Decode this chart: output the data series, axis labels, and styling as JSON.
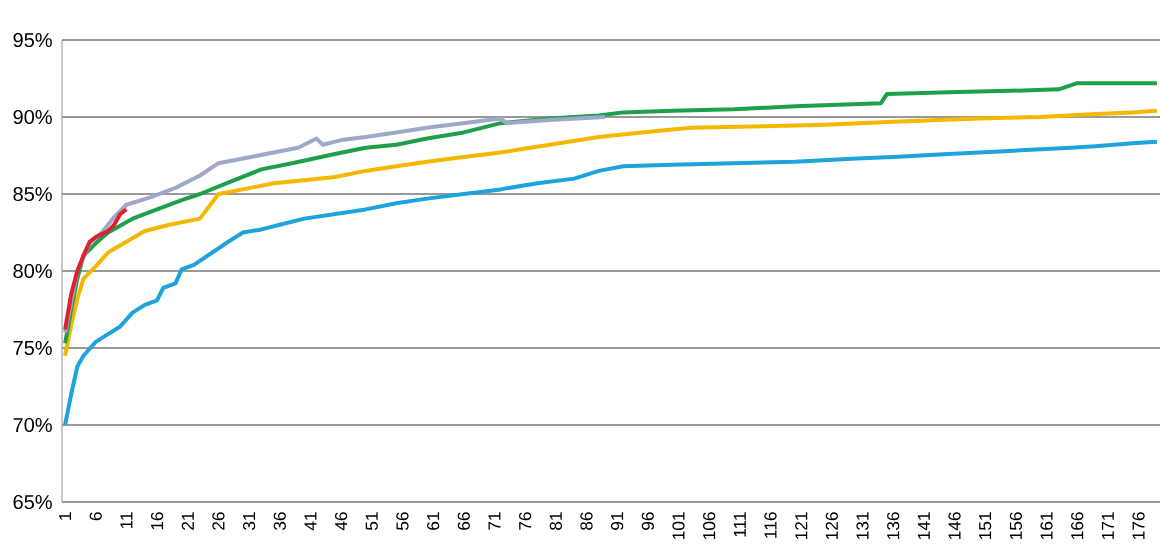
{
  "chart_data": {
    "type": "line",
    "grid": "y",
    "marker": "none",
    "line_style": "solid",
    "xlim": [
      0.5,
      179.5
    ],
    "xticks": [
      1,
      6,
      11,
      16,
      21,
      26,
      31,
      36,
      41,
      46,
      51,
      56,
      61,
      66,
      71,
      76,
      81,
      86,
      91,
      96,
      101,
      106,
      111,
      116,
      121,
      126,
      131,
      136,
      141,
      146,
      151,
      156,
      161,
      166,
      171,
      176
    ],
    "ylim": [
      65,
      95
    ],
    "yticks": [
      {
        "value": 65,
        "label": "65%"
      },
      {
        "value": 70,
        "label": "70%"
      },
      {
        "value": 75,
        "label": "75%"
      },
      {
        "value": 80,
        "label": "80%"
      },
      {
        "value": 85,
        "label": "85%"
      },
      {
        "value": 90,
        "label": "90%"
      },
      {
        "value": 95,
        "label": "95%"
      }
    ],
    "series": [
      {
        "color": "#1fa3dc",
        "x": [
          1,
          2,
          3,
          4,
          6,
          8,
          10,
          12,
          14,
          16,
          17,
          19,
          20,
          22,
          25,
          28,
          30,
          33,
          36,
          40,
          45,
          50,
          55,
          60,
          66,
          72,
          78,
          84,
          88,
          92,
          100,
          110,
          120,
          130,
          136,
          145,
          155,
          165,
          169,
          175,
          179
        ],
        "values": [
          70,
          72,
          73.8,
          74.5,
          75.4,
          75.9,
          76.4,
          77.3,
          77.8,
          78.1,
          78.9,
          79.2,
          80.1,
          80.4,
          81.2,
          82.0,
          82.5,
          82.7,
          83.0,
          83.4,
          83.7,
          84.0,
          84.4,
          84.7,
          85.0,
          85.3,
          85.7,
          86.0,
          86.5,
          86.8,
          86.9,
          87.0,
          87.1,
          87.3,
          87.4,
          87.6,
          87.8,
          88.0,
          88.1,
          88.3,
          88.4
        ]
      },
      {
        "color": "#f5b800",
        "x": [
          1,
          2,
          3,
          4,
          6,
          8,
          11,
          14,
          18,
          23,
          26,
          30,
          35,
          40,
          45,
          50,
          55,
          60,
          66,
          72,
          80,
          88,
          95,
          103,
          115,
          125,
          136,
          150,
          160,
          169,
          175,
          179
        ],
        "values": [
          74.5,
          76.5,
          78.2,
          79.5,
          80.3,
          81.2,
          81.9,
          82.6,
          83.0,
          83.4,
          85.0,
          85.3,
          85.7,
          85.9,
          86.1,
          86.5,
          86.8,
          87.1,
          87.4,
          87.7,
          88.2,
          88.7,
          89.0,
          89.3,
          89.4,
          89.5,
          89.7,
          89.9,
          90.0,
          90.2,
          90.3,
          90.4
        ]
      },
      {
        "color": "#1ea04b",
        "x": [
          1,
          2,
          3,
          4,
          6,
          8,
          12,
          16,
          20,
          23,
          28,
          33,
          38,
          45,
          50,
          55,
          60,
          66,
          72,
          80,
          88,
          92,
          100,
          110,
          120,
          134,
          135,
          145,
          155,
          163,
          166,
          172,
          179
        ],
        "values": [
          75.3,
          77.5,
          79.5,
          81.0,
          81.8,
          82.5,
          83.4,
          84.0,
          84.6,
          85.0,
          85.8,
          86.6,
          87.0,
          87.6,
          88.0,
          88.2,
          88.6,
          89.0,
          89.6,
          89.9,
          90.1,
          90.3,
          90.4,
          90.5,
          90.7,
          90.9,
          91.5,
          91.6,
          91.7,
          91.8,
          92.2,
          92.2,
          92.2
        ]
      },
      {
        "color": "#9fa8c8",
        "x": [
          1,
          3,
          5,
          7,
          9,
          11,
          15,
          19,
          23,
          26,
          30,
          35,
          39,
          42,
          43,
          46,
          50,
          55,
          60,
          66,
          72,
          73,
          80,
          89
        ],
        "values": [
          76.0,
          80.0,
          81.8,
          82.5,
          83.5,
          84.3,
          84.8,
          85.4,
          86.2,
          87.0,
          87.3,
          87.7,
          88.0,
          88.6,
          88.2,
          88.5,
          88.7,
          89.0,
          89.3,
          89.6,
          89.9,
          89.6,
          89.8,
          90.0
        ]
      },
      {
        "color": "#e0202e",
        "x": [
          1,
          2,
          3,
          4,
          5,
          6,
          8,
          9,
          10,
          11
        ],
        "values": [
          76.2,
          78.5,
          80.0,
          81.0,
          81.9,
          82.2,
          82.6,
          83.0,
          83.7,
          84.0
        ]
      }
    ]
  }
}
